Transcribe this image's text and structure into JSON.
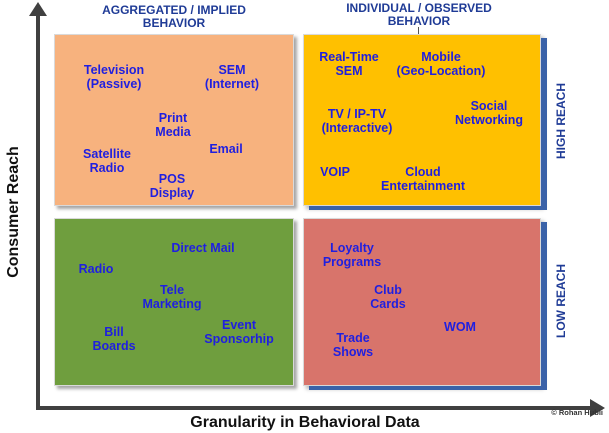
{
  "columns": {
    "left": "AGGREGATED / IMPLIED\nBEHAVIOR",
    "right": "INDIVIDUAL / OBSERVED\nBEHAVIOR"
  },
  "rows": {
    "top": "HIGH REACH",
    "bottom": "LOW REACH"
  },
  "axes": {
    "y": "Consumer Reach",
    "x": "Granularity in Behavioral Data"
  },
  "credit": "© Rohan Hubli",
  "quadrants": {
    "top_left": [
      "Television\n(Passive)",
      "SEM\n(Internet)",
      "Print\nMedia",
      "Email",
      "Satellite\nRadio",
      "POS\nDisplay"
    ],
    "top_right": [
      "Real-Time\nSEM",
      "Mobile\n(Geo-Location)",
      "Social\nNetworking",
      "TV / IP-TV\n(Interactive)",
      "VOIP",
      "Cloud\nEntertainment"
    ],
    "bottom_left": [
      "Direct Mail",
      "Radio",
      "Tele\nMarketing",
      "Event\nSponsorhip",
      "Bill\nBoards"
    ],
    "bottom_right": [
      "Loyalty\nPrograms",
      "Club\nCards",
      "WOM",
      "Trade\nShows"
    ]
  },
  "colors": {
    "top_left": "#f7b27e",
    "top_right": "#ffc000",
    "bottom_left": "#6f9e3e",
    "bottom_right": "#d8746b",
    "item_text": "#1f1fe0",
    "label_text": "#1f3b96"
  }
}
